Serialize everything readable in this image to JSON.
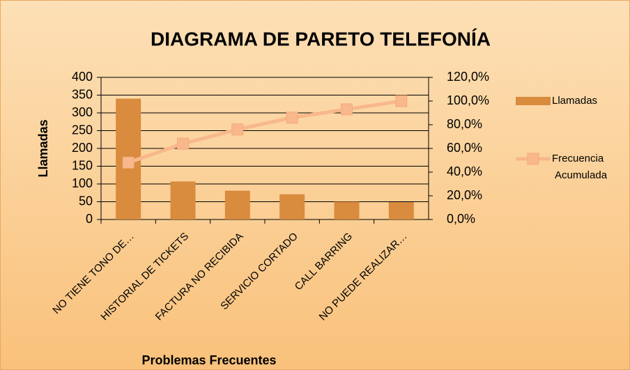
{
  "chart_data": {
    "type": "bar",
    "title": "DIAGRAMA DE PARETO TELEFONÍA",
    "x_label": "Problemas Frecuentes",
    "y_label": "Llamadas",
    "categories": [
      "NO TIENE TONO DE…",
      "HISTORIAL DE  TICKETS",
      "FACTURA NO RECIBIDA",
      "SERVICIO CORTADO",
      "CALL BARRING",
      "NO PUEDE REALIZAR…"
    ],
    "series": [
      {
        "name": "Llamadas",
        "type": "bar",
        "color": "#d98b3e",
        "values": [
          340,
          107,
          81,
          71,
          50,
          49
        ]
      },
      {
        "name": "Frecuencia Acumulada",
        "type": "line",
        "axis": "y2",
        "color": "#f8b88b",
        "values": [
          48,
          64,
          76,
          86,
          93,
          100
        ]
      }
    ],
    "ylim": [
      0,
      400
    ],
    "yticks": [
      0,
      50,
      100,
      150,
      200,
      250,
      300,
      350,
      400
    ],
    "y2lim": [
      0,
      120
    ],
    "y2ticks": [
      {
        "value": 0,
        "label": "0,0%"
      },
      {
        "value": 20,
        "label": "20,0%"
      },
      {
        "value": 40,
        "label": "40,0%"
      },
      {
        "value": 60,
        "label": "60,0%"
      },
      {
        "value": 80,
        "label": "80,0%"
      },
      {
        "value": 100,
        "label": "100,0%"
      },
      {
        "value": 120,
        "label": "120,0%"
      }
    ],
    "grid": true,
    "legend": "right"
  }
}
